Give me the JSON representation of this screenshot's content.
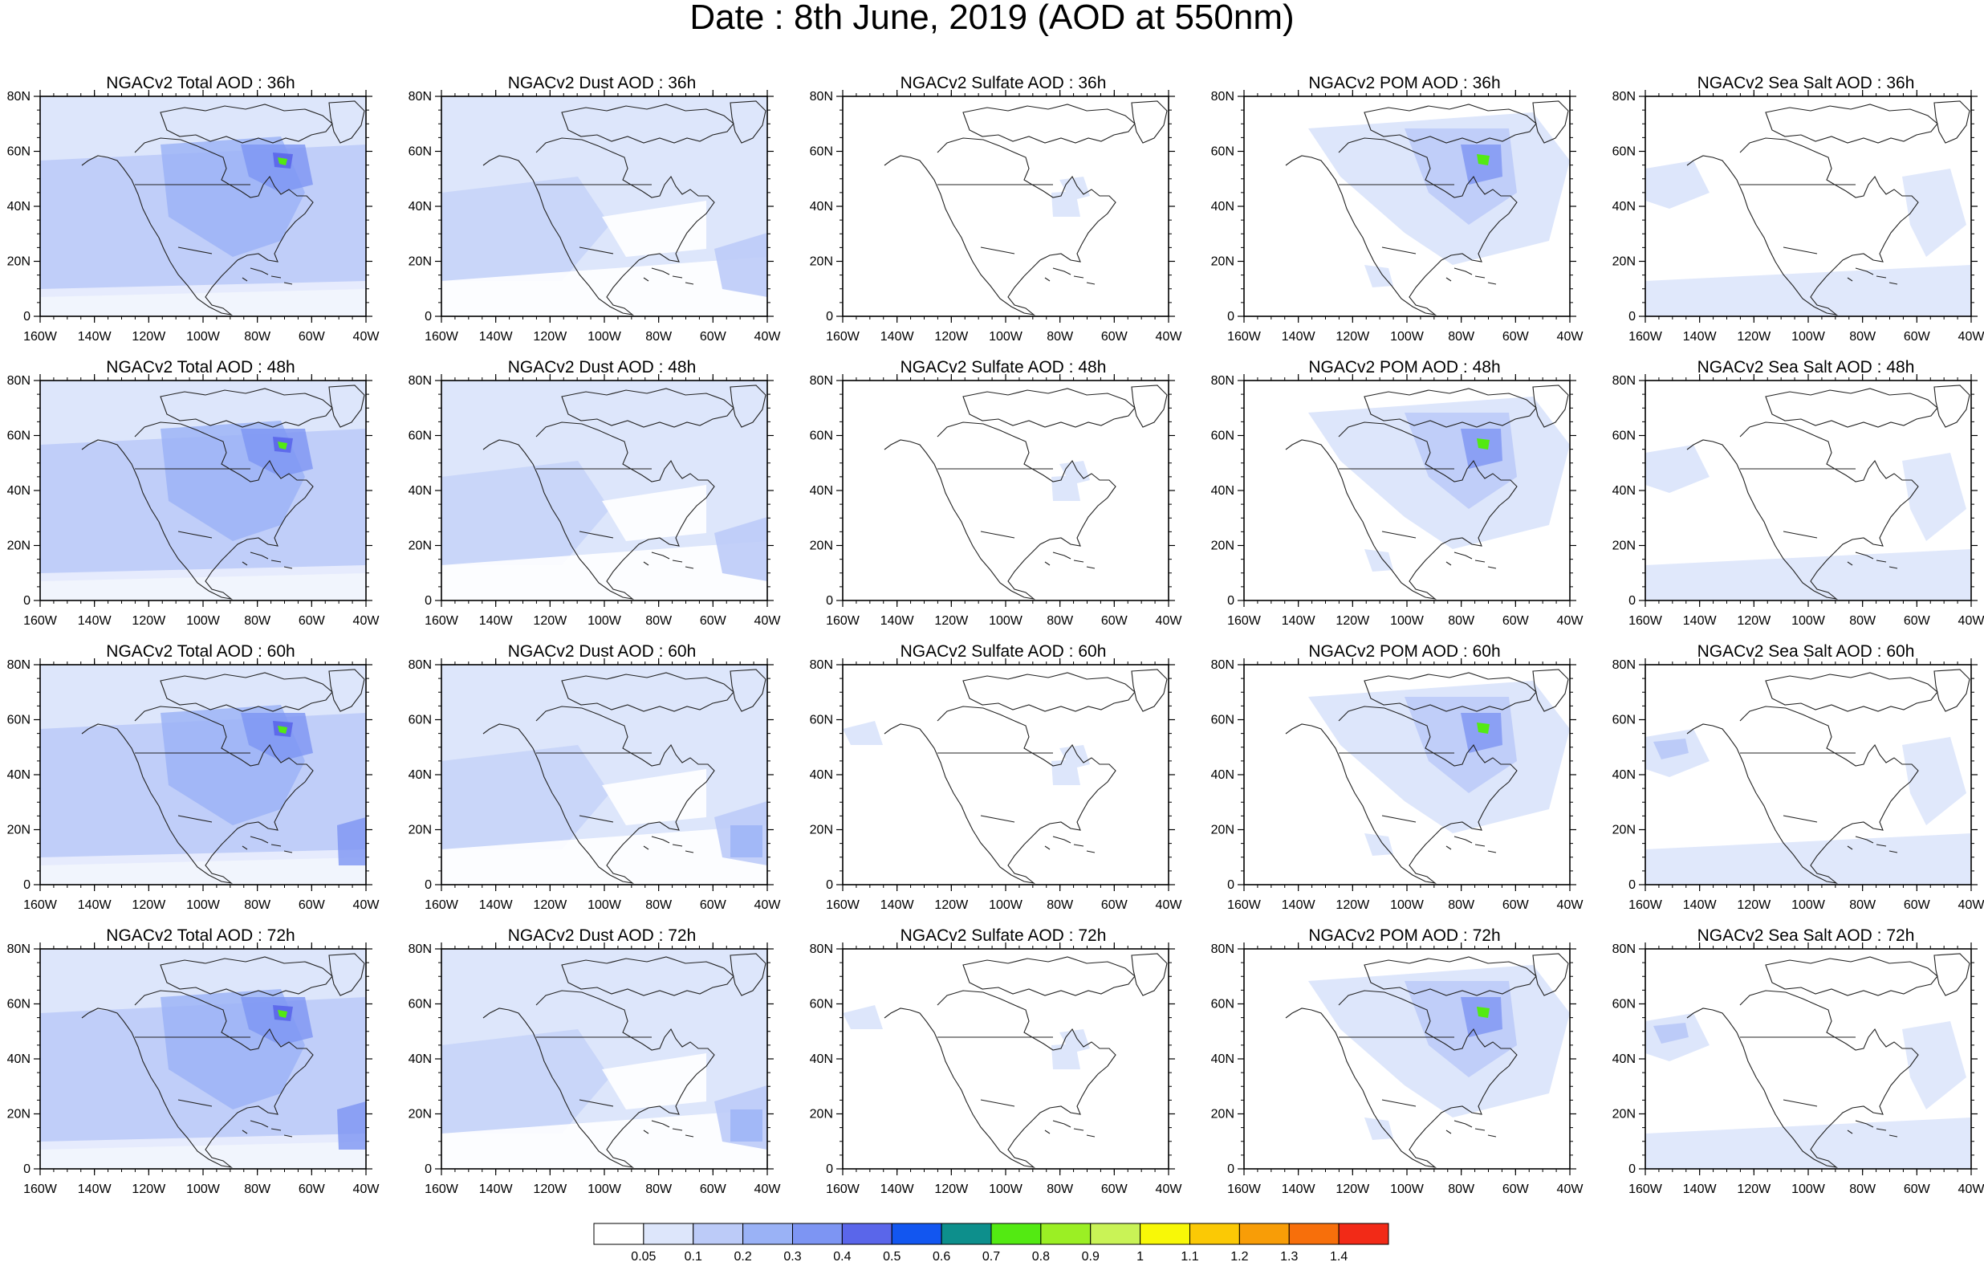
{
  "title": "Date : 8th June, 2019 (AOD at 550nm)",
  "rows": [
    [
      "NGACv2 Total AOD : 36h",
      "NGACv2 Dust AOD : 36h",
      "NGACv2 Sulfate AOD : 36h",
      "NGACv2 POM AOD : 36h",
      "NGACv2 Sea Salt AOD : 36h"
    ],
    [
      "NGACv2 Total AOD : 48h",
      "NGACv2 Dust AOD : 48h",
      "NGACv2 Sulfate AOD : 48h",
      "NGACv2 POM AOD : 48h",
      "NGACv2 Sea Salt AOD : 48h"
    ],
    [
      "NGACv2 Total AOD : 60h",
      "NGACv2 Dust AOD : 60h",
      "NGACv2 Sulfate AOD : 60h",
      "NGACv2 POM AOD : 60h",
      "NGACv2 Sea Salt AOD : 60h"
    ],
    [
      "NGACv2 Total AOD : 72h",
      "NGACv2 Dust AOD : 72h",
      "NGACv2 Sulfate AOD : 72h",
      "NGACv2 POM AOD : 72h",
      "NGACv2 Sea Salt  AOD : 72h"
    ]
  ],
  "lat_ticks": [
    "80N",
    "60N",
    "40N",
    "20N",
    "0"
  ],
  "lon_ticks": [
    "160W",
    "140W",
    "120W",
    "100W",
    "80W",
    "60W",
    "40W"
  ],
  "colorbar": {
    "labels": [
      "0.05",
      "0.1",
      "0.2",
      "0.3",
      "0.4",
      "0.5",
      "0.6",
      "0.7",
      "0.8",
      "0.9",
      "1",
      "1.1",
      "1.2",
      "1.3",
      "1.4"
    ],
    "colors": [
      "#ffffff",
      "#dde6fb",
      "#bccbf8",
      "#9ab2f6",
      "#7d95f3",
      "#5a66ea",
      "#1256f0",
      "#0d8f8c",
      "#53ea12",
      "#9bef24",
      "#c9f356",
      "#f8f807",
      "#fbc905",
      "#f89d07",
      "#f76f0b",
      "#f22a17"
    ]
  },
  "field_colors": {
    "light": "#dde6fb",
    "mid": "#bccbf8",
    "strong": "#9ab2f6",
    "deep": "#7d95f3",
    "hot": "#5a66ea",
    "green": "#53ea12"
  }
}
